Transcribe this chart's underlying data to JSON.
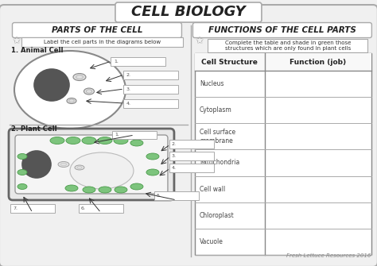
{
  "title": "CELL BIOLOGY",
  "left_section_title": "PARTS OF THE CELL",
  "right_section_title": "FUNCTIONS OF THE CELL PARTS",
  "left_instruction": "Label the cell parts in the diagrams below",
  "right_instruction": "Complete the table and shade in green those\nstructures which are only found in plant cells",
  "animal_cell_label": "1. Animal Cell",
  "plant_cell_label": "2. Plant Cell",
  "table_headers": [
    "Cell Structure",
    "Function (job)"
  ],
  "table_rows": [
    "Nucleus",
    "Cytoplasm",
    "Cell surface\nmembrane",
    "Mitochondria",
    "Cell wall",
    "Chloroplast",
    "Vacuole"
  ],
  "footer": "Fresh Lettuce Resources 2016",
  "bg_color": "#f0f0f0",
  "outer_fill": "#f0f0f0",
  "white": "#ffffff",
  "dark_gray": "#555555",
  "mid_gray": "#999999",
  "light_gray": "#e8e8e8",
  "green_chl": "#7dc47d",
  "green_chl_edge": "#4a9a4a",
  "title_font_size": 13,
  "section_font_size": 7.5,
  "body_font_size": 5.5,
  "label_font_size": 5
}
